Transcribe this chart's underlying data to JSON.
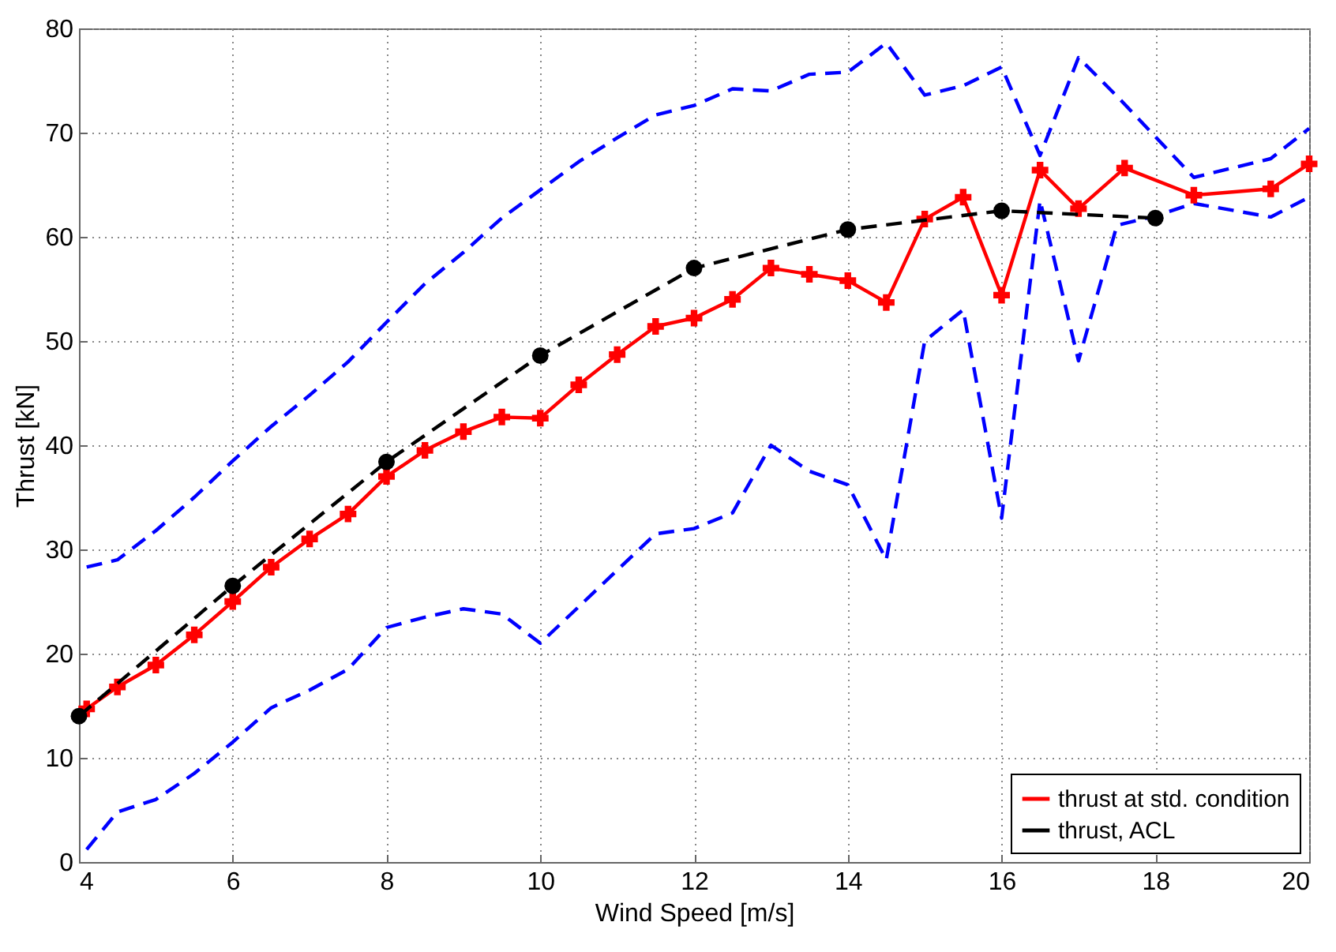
{
  "chart_data": {
    "type": "line",
    "xlabel": "Wind Speed [m/s]",
    "ylabel": "Thrust [kN]",
    "xlim": [
      4,
      20
    ],
    "ylim": [
      0,
      80
    ],
    "xticks": [
      4,
      6,
      8,
      10,
      12,
      14,
      16,
      18,
      20
    ],
    "yticks": [
      0,
      10,
      20,
      30,
      40,
      50,
      60,
      70,
      80
    ],
    "grid": true,
    "legend": "bottom right",
    "series": [
      {
        "x": [
          4.1,
          4.5,
          5,
          5.5,
          6,
          6.5,
          7,
          7.5,
          8,
          8.5,
          9,
          9.5,
          10,
          10.5,
          11,
          11.5,
          12,
          12.5,
          13,
          13.5,
          14,
          14.5,
          15,
          15.5,
          16,
          16.5,
          17,
          17.5,
          18,
          18.5,
          19.5,
          20
        ],
        "values": [
          28.3,
          29,
          31.8,
          35,
          38.5,
          41.8,
          44.8,
          48,
          51.8,
          55.5,
          58.5,
          61.8,
          64.5,
          67.2,
          69.5,
          71.7,
          72.6,
          74.2,
          74,
          75.6,
          75.8,
          78.6,
          73.6,
          74.5,
          76.3,
          67.8,
          77.2,
          73.5,
          69.6,
          65.7,
          67.5,
          70.4
        ],
        "color": "#0000ff",
        "marker": "none",
        "line_style": "dashed"
      },
      {
        "x": [
          4.1,
          4.5,
          5,
          5.5,
          6,
          6.5,
          7,
          7.5,
          8,
          8.5,
          9,
          9.5,
          10,
          10.5,
          11,
          11.5,
          12,
          12.5,
          13,
          13.5,
          14,
          14.5,
          15,
          15.5,
          16,
          16.5,
          17,
          17.5,
          18,
          18.5,
          19.5,
          20
        ],
        "values": [
          1.2,
          4.8,
          6,
          8.5,
          11.5,
          14.8,
          16.5,
          18.5,
          22.5,
          23.5,
          24.3,
          23.8,
          21,
          24.5,
          28,
          31.5,
          32,
          33.5,
          40,
          37.5,
          36.2,
          29,
          50,
          53,
          33,
          63.5,
          48.1,
          61.1,
          62,
          63.2,
          61.9,
          63.8
        ],
        "color": "#0000ff",
        "marker": "none",
        "line_style": "dashed"
      },
      {
        "name": "thrust at std. condition",
        "x": [
          4.1,
          4.5,
          5,
          5.5,
          6,
          6.5,
          7,
          7.5,
          8,
          8.5,
          9,
          9.5,
          10,
          10.5,
          11,
          11.5,
          12,
          12.5,
          13,
          13.5,
          14,
          14.5,
          15,
          15.5,
          16,
          16.5,
          17,
          17.6,
          18.5,
          19.5,
          20
        ],
        "values": [
          14.7,
          16.8,
          18.9,
          21.8,
          25,
          28.3,
          31,
          33.4,
          37,
          39.5,
          41.3,
          42.7,
          42.6,
          45.8,
          48.7,
          51.4,
          52.2,
          54,
          57,
          56.4,
          55.8,
          53.7,
          61.7,
          63.8,
          54.4,
          66.4,
          62.7,
          66.6,
          64,
          64.6,
          67
        ],
        "color": "#ff0000",
        "marker": "cross",
        "line_style": "solid"
      },
      {
        "name": "thrust, ACL",
        "x": [
          4,
          6,
          8,
          10,
          12,
          14,
          16,
          18
        ],
        "values": [
          14,
          26.5,
          38.4,
          48.6,
          57,
          60.7,
          62.5,
          61.8
        ],
        "color": "#000000",
        "marker": "circle",
        "line_style": "dashed"
      }
    ]
  }
}
